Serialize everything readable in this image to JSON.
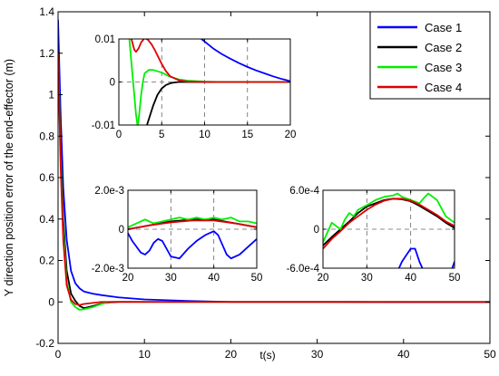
{
  "chart_data": {
    "type": "line",
    "xlabel": "t(s)",
    "ylabel": "Y direction position error of the end-effector (m)",
    "xlim": [
      0,
      50
    ],
    "ylim": [
      -0.2,
      1.4
    ],
    "xticks": [
      0,
      10,
      20,
      30,
      40,
      50
    ],
    "yticks": [
      -0.2,
      0,
      0.2,
      0.4,
      0.6,
      0.8,
      1.0,
      1.2,
      1.4
    ],
    "xtick_labels": [
      "0",
      "10",
      "20",
      "30",
      "40",
      "50"
    ],
    "ytick_labels": [
      "-0.2",
      "0",
      "0.2",
      "0.4",
      "0.6",
      "0.8",
      "1",
      "1.2",
      "1.4"
    ],
    "legend_position": "top-right",
    "series": [
      {
        "name": "Case 1",
        "color": "#0000ff",
        "x": [
          0,
          0.3,
          0.6,
          1,
          1.5,
          2,
          2.5,
          3,
          4,
          5,
          7,
          10,
          15,
          20,
          30,
          40,
          50
        ],
        "y": [
          1.36,
          0.9,
          0.55,
          0.3,
          0.15,
          0.09,
          0.065,
          0.05,
          0.04,
          0.033,
          0.022,
          0.012,
          0.005,
          0,
          0,
          -0.001,
          -0.001
        ]
      },
      {
        "name": "Case 2",
        "color": "#000000",
        "x": [
          0,
          0.3,
          0.6,
          1,
          1.5,
          2,
          2.5,
          3,
          4,
          5,
          6,
          7,
          8,
          10,
          20,
          30,
          40,
          50
        ],
        "y": [
          1.2,
          0.75,
          0.4,
          0.15,
          0.04,
          0.005,
          -0.02,
          -0.03,
          -0.02,
          -0.008,
          -0.002,
          0,
          0,
          0,
          0,
          0,
          0,
          0
        ]
      },
      {
        "name": "Case 3",
        "color": "#00ee00",
        "x": [
          0,
          0.3,
          0.6,
          1,
          1.5,
          2,
          2.5,
          3,
          4,
          5,
          6,
          7,
          8,
          10,
          20,
          30,
          40,
          50
        ],
        "y": [
          1.2,
          0.7,
          0.35,
          0.1,
          0.0,
          -0.025,
          -0.038,
          -0.035,
          -0.025,
          -0.01,
          0,
          0.001,
          0.001,
          0,
          0,
          0,
          0,
          0
        ]
      },
      {
        "name": "Case 4",
        "color": "#dd0000",
        "x": [
          0,
          0.3,
          0.6,
          1,
          1.5,
          2,
          2.5,
          3,
          4,
          5,
          6,
          7,
          8,
          10,
          20,
          30,
          40,
          50
        ],
        "y": [
          1.2,
          0.65,
          0.3,
          0.08,
          0.01,
          -0.01,
          -0.015,
          -0.01,
          -0.005,
          0,
          0,
          0,
          0,
          0,
          0,
          0,
          0,
          0
        ]
      }
    ],
    "insets": [
      {
        "xlim": [
          0,
          20
        ],
        "ylim": [
          -0.01,
          0.01
        ],
        "xticks": [
          0,
          5,
          10,
          15,
          20
        ],
        "yticks": [
          -0.01,
          0,
          0.01
        ],
        "xtick_labels": [
          "0",
          "5",
          "10",
          "15",
          "20"
        ],
        "ytick_labels": [
          "-0.01",
          "0",
          "0.01"
        ],
        "series": [
          {
            "name": "Case 1",
            "color": "#0000ff",
            "x": [
              9.5,
              10,
              11,
              12,
              13,
              14,
              15,
              16,
              17,
              18,
              19,
              20
            ],
            "y": [
              0.0102,
              0.0094,
              0.0078,
              0.0065,
              0.0054,
              0.0044,
              0.0035,
              0.0027,
              0.002,
              0.0013,
              0.0007,
              0.0002
            ]
          },
          {
            "name": "Case 2",
            "color": "#000000",
            "x": [
              3.2,
              3.6,
              4,
              4.5,
              5,
              5.5,
              6,
              6.5,
              7,
              8,
              10,
              20
            ],
            "y": [
              -0.0105,
              -0.008,
              -0.0055,
              -0.003,
              -0.0015,
              -0.0007,
              -0.0003,
              -0.0001,
              0,
              0,
              0,
              0
            ]
          },
          {
            "name": "Case 3",
            "color": "#00ee00",
            "x": [
              1.2,
              1.4,
              1.6,
              1.8,
              2,
              2.2,
              2.4,
              2.6,
              2.8,
              3,
              3.5,
              4,
              5,
              6,
              7,
              8,
              9,
              10,
              12,
              15,
              20
            ],
            "y": [
              0.0105,
              0.006,
              0.0015,
              -0.003,
              -0.0075,
              -0.0105,
              -0.007,
              -0.003,
              0,
              0.002,
              0.0028,
              0.0028,
              0.0022,
              0.0012,
              0.0006,
              0.0003,
              0.0002,
              0.0001,
              0,
              0,
              0
            ]
          },
          {
            "name": "Case 4",
            "color": "#dd0000",
            "x": [
              1.4,
              1.6,
              1.8,
              2,
              2.3,
              2.6,
              3,
              3.4,
              3.8,
              4.2,
              4.6,
              5,
              5.5,
              6,
              7,
              8,
              10,
              15,
              20
            ],
            "y": [
              0.0105,
              0.009,
              0.0075,
              0.007,
              0.0078,
              0.0092,
              0.0102,
              0.0098,
              0.0088,
              0.0074,
              0.0058,
              0.0042,
              0.0025,
              0.0013,
              0.0004,
              0.0001,
              0,
              0,
              0
            ]
          }
        ]
      },
      {
        "xlim": [
          20,
          50
        ],
        "ylim": [
          -0.002,
          0.002
        ],
        "xticks": [
          20,
          30,
          40,
          50
        ],
        "yticks": [
          -0.002,
          0,
          0.002
        ],
        "xtick_labels": [
          "20",
          "30",
          "40",
          "50"
        ],
        "ytick_labels": [
          "-2.0e-3",
          "0",
          "2.0e-3"
        ],
        "series": [
          {
            "name": "Case 1",
            "color": "#0000ff",
            "x": [
              20,
              21,
              22,
              23,
              24,
              25,
              26,
              27,
              28,
              29,
              30,
              32,
              34,
              36,
              38,
              40,
              41,
              42,
              43,
              44,
              46,
              48,
              50
            ],
            "y": [
              -0.0002,
              -0.0006,
              -0.0009,
              -0.0012,
              -0.0013,
              -0.0011,
              -0.0007,
              -0.0005,
              -0.0006,
              -0.001,
              -0.0014,
              -0.0015,
              -0.001,
              -0.0006,
              -0.0003,
              -0.0001,
              -0.0003,
              -0.0008,
              -0.0013,
              -0.0015,
              -0.0013,
              -0.0009,
              -0.0005
            ]
          },
          {
            "name": "Case 2",
            "color": "#000000",
            "x": [
              20,
              25,
              30,
              35,
              40,
              45,
              50
            ],
            "y": [
              0.0,
              0.0002,
              0.0004,
              0.0005,
              0.0005,
              0.0003,
              0.0001
            ]
          },
          {
            "name": "Case 3",
            "color": "#00ee00",
            "x": [
              20,
              22,
              24,
              26,
              28,
              30,
              32,
              34,
              36,
              38,
              40,
              42,
              44,
              46,
              48,
              50
            ],
            "y": [
              0.0001,
              0.0003,
              0.0005,
              0.0003,
              0.0004,
              0.0005,
              0.0006,
              0.0005,
              0.0006,
              0.0005,
              0.0006,
              0.0005,
              0.0006,
              0.0004,
              0.0004,
              0.0003
            ]
          },
          {
            "name": "Case 4",
            "color": "#dd0000",
            "x": [
              20,
              25,
              30,
              35,
              40,
              45,
              50
            ],
            "y": [
              0.0,
              0.0002,
              0.00035,
              0.00045,
              0.00045,
              0.0003,
              0.0001
            ]
          }
        ]
      },
      {
        "xlim": [
          20,
          50
        ],
        "ylim": [
          -0.0006,
          0.0006
        ],
        "xticks": [
          20,
          30,
          40,
          50
        ],
        "yticks": [
          -0.0006,
          0,
          0.0006
        ],
        "xtick_labels": [
          "20",
          "30",
          "40",
          "50"
        ],
        "ytick_labels": [
          "-6.0e-4",
          "0",
          "6.0e-4"
        ],
        "series": [
          {
            "name": "Case 1",
            "color": "#0000ff",
            "x": [
              37,
              38,
              39,
              40,
              41,
              42,
              43,
              49.2,
              50
            ],
            "y": [
              -0.00065,
              -0.0005,
              -0.0004,
              -0.0003,
              -0.0003,
              -0.0005,
              -0.00065,
              -0.00065,
              -0.0005
            ]
          },
          {
            "name": "Case 2",
            "color": "#000000",
            "x": [
              20,
              22,
              24,
              26,
              28,
              30,
              32,
              34,
              36,
              38,
              40,
              42,
              44,
              46,
              48,
              50
            ],
            "y": [
              -0.00025,
              -0.00012,
              0.0,
              0.00012,
              0.00025,
              0.00035,
              0.0004,
              0.00045,
              0.00047,
              0.00046,
              0.00043,
              0.00036,
              0.00028,
              0.0002,
              0.0001,
              2e-05
            ]
          },
          {
            "name": "Case 3",
            "color": "#00ee00",
            "x": [
              20,
              21,
              22,
              23,
              24,
              25,
              26,
              27,
              28,
              30,
              32,
              34,
              36,
              37,
              38,
              40,
              42,
              43,
              44,
              45,
              46,
              48,
              50
            ],
            "y": [
              -0.0002,
              -5e-05,
              0.0001,
              5e-05,
              0.0,
              0.00015,
              0.00025,
              0.0002,
              0.0003,
              0.00037,
              0.00045,
              0.0005,
              0.00052,
              0.00055,
              0.0005,
              0.00045,
              0.0004,
              0.00048,
              0.00055,
              0.0005,
              0.00045,
              0.0002,
              0.0001
            ]
          },
          {
            "name": "Case 4",
            "color": "#dd0000",
            "x": [
              20,
              22,
              24,
              26,
              28,
              30,
              32,
              34,
              36,
              38,
              40,
              42,
              44,
              46,
              48,
              50
            ],
            "y": [
              -0.0003,
              -0.00015,
              -3e-05,
              0.0001,
              0.0002,
              0.0003,
              0.00038,
              0.00044,
              0.00047,
              0.00047,
              0.00044,
              0.00038,
              0.0003,
              0.00022,
              0.00012,
              5e-05
            ]
          }
        ]
      }
    ]
  }
}
